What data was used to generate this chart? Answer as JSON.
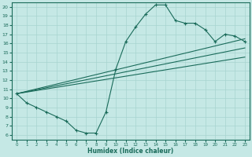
{
  "xlabel": "Humidex (Indice chaleur)",
  "ylabel": "",
  "bg_color": "#c5e8e5",
  "line_color": "#1a6b5a",
  "grid_color": "#a8d4d0",
  "xlim": [
    -0.5,
    23.5
  ],
  "ylim": [
    5.5,
    20.5
  ],
  "xticks": [
    0,
    1,
    2,
    3,
    4,
    5,
    6,
    7,
    8,
    9,
    10,
    11,
    12,
    13,
    14,
    15,
    16,
    17,
    18,
    19,
    20,
    21,
    22,
    23
  ],
  "yticks": [
    6,
    7,
    8,
    9,
    10,
    11,
    12,
    13,
    14,
    15,
    16,
    17,
    18,
    19,
    20
  ],
  "line1_x": [
    0,
    1,
    2,
    3,
    4,
    5,
    6,
    7,
    8,
    9,
    10,
    11,
    12,
    13,
    14,
    15,
    16,
    17,
    18,
    19,
    20,
    21,
    22,
    23
  ],
  "line1_y": [
    10.5,
    9.5,
    9.0,
    8.5,
    8.0,
    7.5,
    6.5,
    6.2,
    6.2,
    8.5,
    13.2,
    16.2,
    17.8,
    19.2,
    20.2,
    20.2,
    18.5,
    18.2,
    18.2,
    17.5,
    16.2,
    17.0,
    16.8,
    16.2
  ],
  "line2_x": [
    0,
    23
  ],
  "line2_y": [
    10.5,
    16.5
  ],
  "line3_x": [
    0,
    23
  ],
  "line3_y": [
    10.5,
    15.5
  ],
  "line4_x": [
    0,
    23
  ],
  "line4_y": [
    10.5,
    14.5
  ],
  "marker": "+"
}
